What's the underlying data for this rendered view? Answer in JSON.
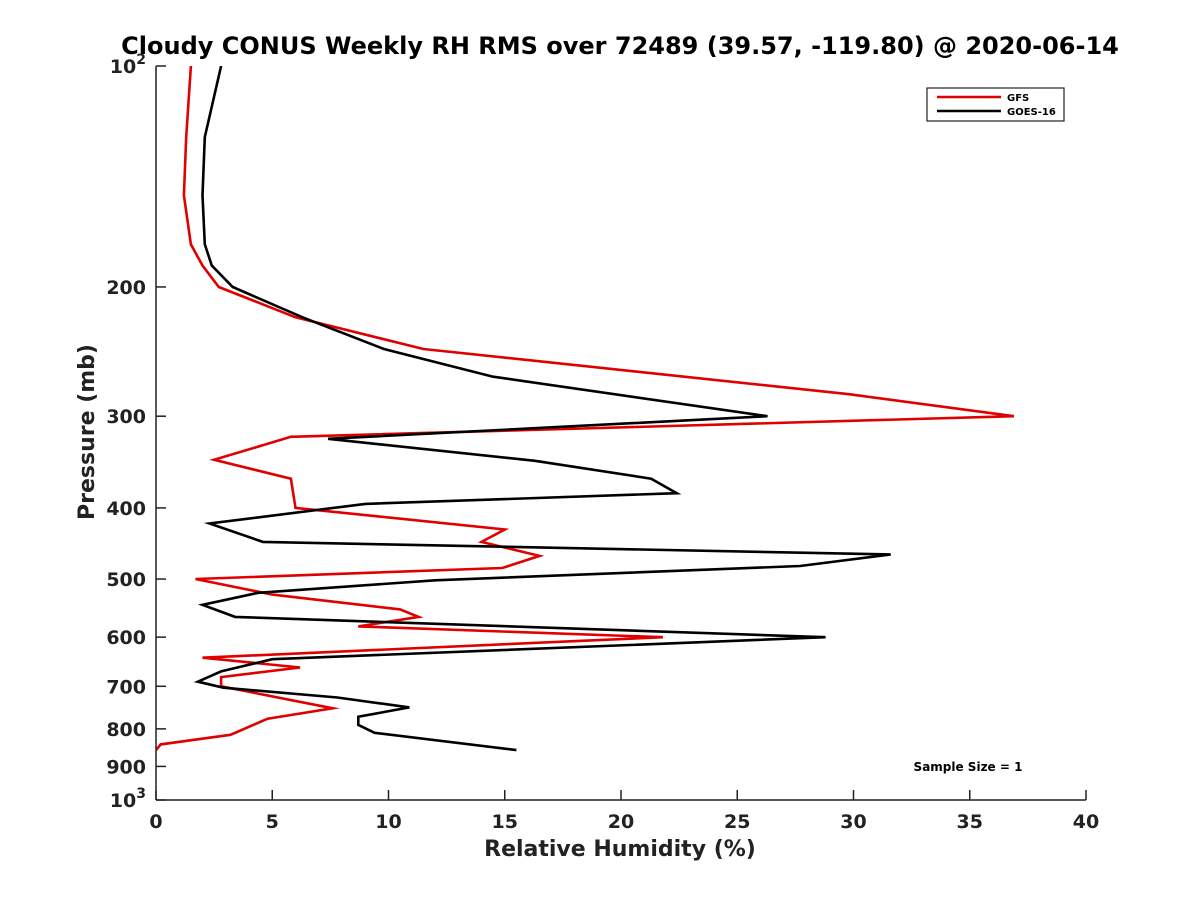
{
  "chart_data": {
    "type": "line",
    "title": "Cloudy CONUS Weekly RH RMS over 72489 (39.57, -119.80) @ 2020-06-14",
    "xlabel": "Relative Humidity (%)",
    "ylabel": "Pressure (mb)",
    "xlim": [
      0,
      40
    ],
    "ylim": [
      100,
      1000
    ],
    "y_scale": "log",
    "y_reversed": true,
    "grid": false,
    "legend_position": "top-right",
    "x_ticks": [
      "0",
      "5",
      "10",
      "15",
      "20",
      "25",
      "30",
      "35",
      "40"
    ],
    "y_ticks": [
      {
        "value": 100,
        "base": "10",
        "exp": "2"
      },
      {
        "value": 200,
        "label": "200"
      },
      {
        "value": 300,
        "label": "300"
      },
      {
        "value": 400,
        "label": "400"
      },
      {
        "value": 500,
        "label": "500"
      },
      {
        "value": 600,
        "label": "600"
      },
      {
        "value": 700,
        "label": "700"
      },
      {
        "value": 800,
        "label": "800"
      },
      {
        "value": 900,
        "label": "900"
      },
      {
        "value": 1000,
        "base": "10",
        "exp": "3"
      }
    ],
    "series": [
      {
        "name": "GFS",
        "color": "#e00000",
        "points": [
          [
            1.5,
            100
          ],
          [
            1.3,
            125
          ],
          [
            1.2,
            150
          ],
          [
            1.5,
            175
          ],
          [
            2.0,
            187
          ],
          [
            2.7,
            200
          ],
          [
            6.0,
            220
          ],
          [
            11.5,
            243
          ],
          [
            29.8,
            280
          ],
          [
            36.9,
            300
          ],
          [
            5.8,
            320
          ],
          [
            2.5,
            344
          ],
          [
            5.8,
            365
          ],
          [
            6.0,
            400
          ],
          [
            15.0,
            428
          ],
          [
            14.0,
            445
          ],
          [
            16.5,
            465
          ],
          [
            14.9,
            483
          ],
          [
            1.7,
            500
          ],
          [
            5.0,
            525
          ],
          [
            10.5,
            550
          ],
          [
            11.3,
            563
          ],
          [
            8.7,
            580
          ],
          [
            21.8,
            600
          ],
          [
            2.0,
            640
          ],
          [
            6.2,
            660
          ],
          [
            2.8,
            680
          ],
          [
            2.8,
            700
          ],
          [
            7.6,
            750
          ],
          [
            4.8,
            775
          ],
          [
            3.2,
            815
          ],
          [
            0.2,
            840
          ],
          [
            0.0,
            855
          ]
        ]
      },
      {
        "name": "GOES-16",
        "color": "#000000",
        "points": [
          [
            2.8,
            100
          ],
          [
            2.1,
            125
          ],
          [
            2.0,
            150
          ],
          [
            2.1,
            175
          ],
          [
            2.4,
            187
          ],
          [
            3.3,
            200
          ],
          [
            6.3,
            220
          ],
          [
            9.8,
            243
          ],
          [
            14.5,
            265
          ],
          [
            26.3,
            300
          ],
          [
            7.4,
            322
          ],
          [
            16.3,
            345
          ],
          [
            21.3,
            365
          ],
          [
            22.4,
            382
          ],
          [
            9.0,
            395
          ],
          [
            2.3,
            420
          ],
          [
            4.6,
            445
          ],
          [
            31.6,
            463
          ],
          [
            27.7,
            480
          ],
          [
            12.0,
            502
          ],
          [
            4.4,
            522
          ],
          [
            2.0,
            542
          ],
          [
            3.4,
            563
          ],
          [
            28.8,
            600
          ],
          [
            5.0,
            643
          ],
          [
            2.8,
            668
          ],
          [
            1.8,
            690
          ],
          [
            2.9,
            703
          ],
          [
            7.8,
            725
          ],
          [
            10.9,
            748
          ],
          [
            8.7,
            770
          ],
          [
            8.7,
            790
          ],
          [
            9.4,
            810
          ],
          [
            15.5,
            855
          ]
        ]
      }
    ],
    "annotation": "Sample Size = 1"
  }
}
